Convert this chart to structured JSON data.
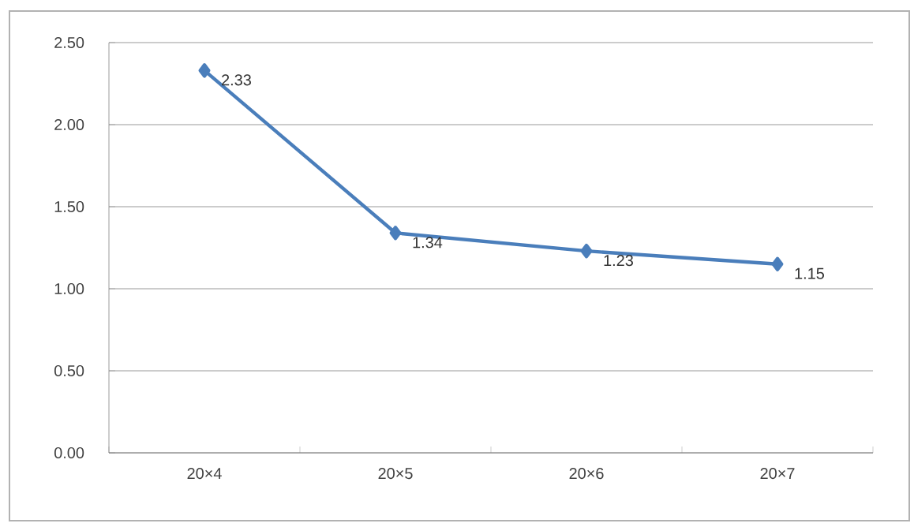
{
  "chart_data": {
    "type": "line",
    "categories": [
      "20×4",
      "20×5",
      "20×6",
      "20×7"
    ],
    "series": [
      {
        "color": "#4a7ebb",
        "values": [
          2.33,
          1.34,
          1.23,
          1.15
        ]
      }
    ],
    "ylim": [
      0,
      2.5
    ],
    "yticks": [
      {
        "value": 0,
        "label": "0.00"
      },
      {
        "value": 0.5,
        "label": "0.50"
      },
      {
        "value": 1,
        "label": "1.00"
      },
      {
        "value": 1.5,
        "label": "1.50"
      },
      {
        "value": 2,
        "label": "2.00"
      },
      {
        "value": 2.5,
        "label": "2.50"
      }
    ],
    "grid": "y",
    "marker": "diamond",
    "line_style": "solid",
    "data_labels": true
  }
}
